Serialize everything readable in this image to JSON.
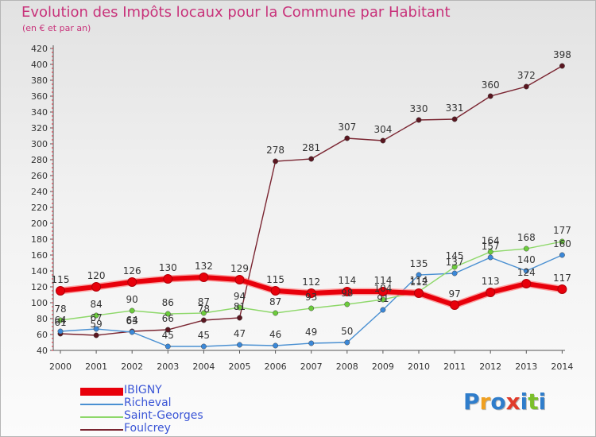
{
  "title": "Evolution des Impôts locaux pour la Commune par Habitant",
  "subtitle": "(en € et par an)",
  "logo": {
    "text": "Proxiti",
    "colors": [
      "#2f7dcb",
      "#f0a020",
      "#2f7dcb",
      "#e03a2a",
      "#2f7dcb",
      "#7bbf2a",
      "#2f7dcb"
    ]
  },
  "chart_data": {
    "type": "line",
    "title": "Evolution des Impôts locaux pour la Commune par Habitant",
    "ylabel": "(en € et par an)",
    "xlabel": "",
    "categories": [
      "2000",
      "2001",
      "2002",
      "2003",
      "2004",
      "2005",
      "2006",
      "2007",
      "2008",
      "2009",
      "2010",
      "2011",
      "2012",
      "2013",
      "2014"
    ],
    "ylim": [
      40,
      420
    ],
    "yticks": [
      40,
      60,
      80,
      100,
      120,
      140,
      160,
      180,
      200,
      220,
      240,
      260,
      280,
      300,
      320,
      340,
      360,
      380,
      400,
      420
    ],
    "grid": false,
    "legend_position": "bottom-left",
    "series": [
      {
        "name": "IBIGNY",
        "color": "#e8000b",
        "marker": "#e8000b",
        "values": [
          115,
          120,
          126,
          130,
          132,
          129,
          115,
          112,
          114,
          114,
          112,
          97,
          113,
          124,
          117
        ],
        "labels": [
          "115",
          "120",
          "126",
          "130",
          "132",
          "129",
          "115",
          "112",
          "114",
          "114",
          "112",
          "97",
          "113",
          "124",
          "117"
        ]
      },
      {
        "name": "Richeval",
        "color": "#4a90d2",
        "marker": "#3b88d8",
        "values": [
          64,
          67,
          63,
          45,
          45,
          47,
          46,
          49,
          50,
          91,
          135,
          137,
          157,
          140,
          160
        ],
        "labels": [
          "64",
          "67",
          "63",
          "45",
          "45",
          "47",
          "46",
          "49",
          "50",
          "91",
          "135",
          "137",
          "157",
          "140",
          "160"
        ]
      },
      {
        "name": "Saint-Georges",
        "color": "#8ed86a",
        "marker": "#6ccc3c",
        "values": [
          78,
          84,
          90,
          86,
          87,
          94,
          87,
          93,
          98,
          104,
          114,
          145,
          164,
          168,
          177
        ],
        "labels": [
          "78",
          "84",
          "90",
          "86",
          "87",
          "94",
          "87",
          "93",
          "98",
          "104",
          "114",
          "145",
          "164",
          "168",
          "177"
        ]
      },
      {
        "name": "Foulcrey",
        "color": "#7a2531",
        "marker": "#5a1620",
        "values": [
          61,
          59,
          64,
          66,
          78,
          81,
          278,
          281,
          307,
          304,
          330,
          331,
          360,
          372,
          398
        ],
        "labels": [
          "61",
          "59",
          "64",
          "66",
          "78",
          "81",
          "278",
          "281",
          "307",
          "304",
          "330",
          "331",
          "360",
          "372",
          "398"
        ]
      }
    ]
  }
}
